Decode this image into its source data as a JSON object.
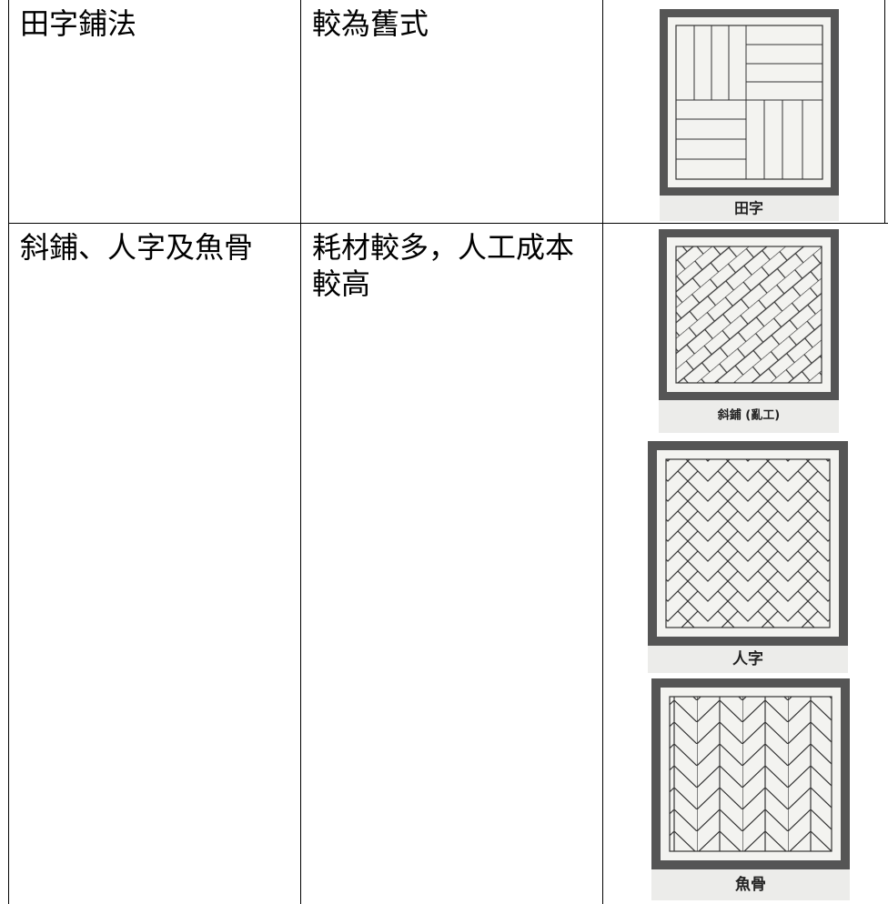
{
  "table": {
    "rows": [
      {
        "cells": [
          "田字鋪法",
          "較為舊式"
        ],
        "images": [
          {
            "caption": "田字"
          }
        ]
      },
      {
        "cells": [
          "斜鋪、人字及魚骨",
          "耗材較多，人工成本較高"
        ],
        "images": [
          {
            "caption": "斜鋪 (亂工)"
          },
          {
            "caption": "人字"
          },
          {
            "caption": "魚骨"
          }
        ]
      }
    ]
  }
}
